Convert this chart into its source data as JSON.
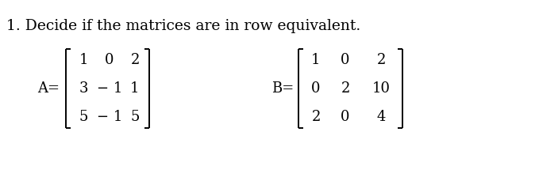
{
  "title_text": "1. Decide if the matrices are in row equivalent.",
  "title_fontsize": 13.5,
  "matrix_A_label": "A=",
  "matrix_B_label": "B=",
  "matrix_A": [
    [
      "1",
      "0",
      "2"
    ],
    [
      "3",
      "− 1",
      "1"
    ],
    [
      "5",
      "− 1",
      "5"
    ]
  ],
  "matrix_B": [
    [
      "1",
      "0",
      "2"
    ],
    [
      "0",
      "2",
      "10"
    ],
    [
      "2",
      "0",
      "4"
    ]
  ],
  "font_family": "DejaVu Serif",
  "text_color": "#000000",
  "bg_color": "#ffffff",
  "matrix_fontsize": 13,
  "label_fontsize": 13,
  "fig_width": 6.79,
  "fig_height": 2.24,
  "dpi": 100
}
